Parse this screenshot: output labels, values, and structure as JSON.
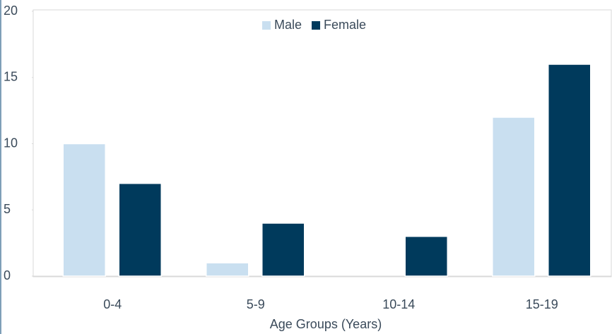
{
  "chart_data": {
    "type": "bar",
    "x_label": "Age Groups (Years)",
    "categories": [
      "0-4",
      "5-9",
      "10-14",
      "15-19"
    ],
    "series": [
      {
        "name": "Male",
        "color": "#c9dff0",
        "values": [
          10,
          1,
          0,
          12
        ]
      },
      {
        "name": "Female",
        "color": "#003a5c",
        "values": [
          7,
          4,
          3,
          16
        ]
      }
    ],
    "ylim": [
      0,
      20
    ],
    "yticks": [
      0,
      5,
      10,
      15,
      20
    ],
    "grid": false,
    "legend": "top"
  }
}
